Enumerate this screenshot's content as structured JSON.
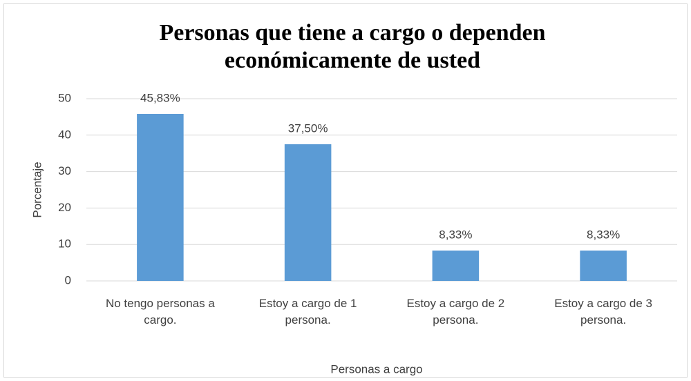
{
  "chart_data": {
    "type": "bar",
    "title": "Personas que tiene a cargo o dependen económicamente de usted",
    "categories": [
      "No tengo personas a cargo.",
      "Estoy a cargo de 1 persona.",
      "Estoy a cargo de 2 persona.",
      "Estoy a cargo de 3 persona."
    ],
    "values": [
      45.83,
      37.5,
      8.33,
      8.33
    ],
    "value_labels": [
      "45,83%",
      "37,50%",
      "8,33%",
      "8,33%"
    ],
    "color": "#5b9bd5",
    "xlabel": "Personas a cargo",
    "ylabel": "Porcentaje",
    "ylim": [
      0,
      50
    ],
    "yticks": [
      0,
      10,
      20,
      30,
      40,
      50
    ],
    "grid": true
  }
}
